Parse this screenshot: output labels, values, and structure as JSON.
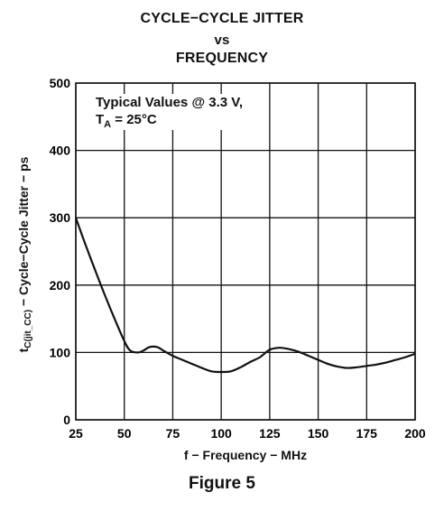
{
  "chart_data": {
    "type": "line",
    "title": "CYCLE−CYCLE JITTER",
    "title_vs": "vs",
    "subtitle": "FREQUENCY",
    "xlabel": "f − Frequency − MHz",
    "ylabel_prefix": "t",
    "ylabel_sub": "C(jit_CC)",
    "ylabel_rest": " − Cycle−Cycle Jitter − ps",
    "xlim": [
      25,
      200
    ],
    "ylim": [
      0,
      500
    ],
    "x_ticks": [
      25,
      50,
      75,
      100,
      125,
      150,
      175,
      200
    ],
    "y_ticks": [
      0,
      100,
      200,
      300,
      400,
      500
    ],
    "grid": true,
    "annotation_line1": "Typical Values @ 3.3 V,",
    "annotation_line2_a": "T",
    "annotation_line2_sub": "A",
    "annotation_line2_b": " = 25°C",
    "series": [
      {
        "x": [
          25,
          30,
          35,
          40,
          45,
          50,
          53,
          57,
          60,
          63,
          67,
          70,
          75,
          80,
          85,
          90,
          95,
          100,
          105,
          110,
          115,
          120,
          125,
          130,
          135,
          140,
          145,
          150,
          155,
          160,
          165,
          170,
          175,
          180,
          185,
          190,
          195,
          200
        ],
        "y": [
          300,
          260,
          222,
          185,
          150,
          117,
          103,
          100,
          103,
          108,
          108,
          103,
          95,
          89,
          83,
          77,
          72,
          71,
          72,
          78,
          86,
          93,
          104,
          107,
          105,
          101,
          95,
          89,
          83,
          79,
          77,
          78,
          80,
          82,
          85,
          89,
          93,
          98
        ],
        "color": "#111111"
      }
    ]
  },
  "figure_label": "Figure 5"
}
